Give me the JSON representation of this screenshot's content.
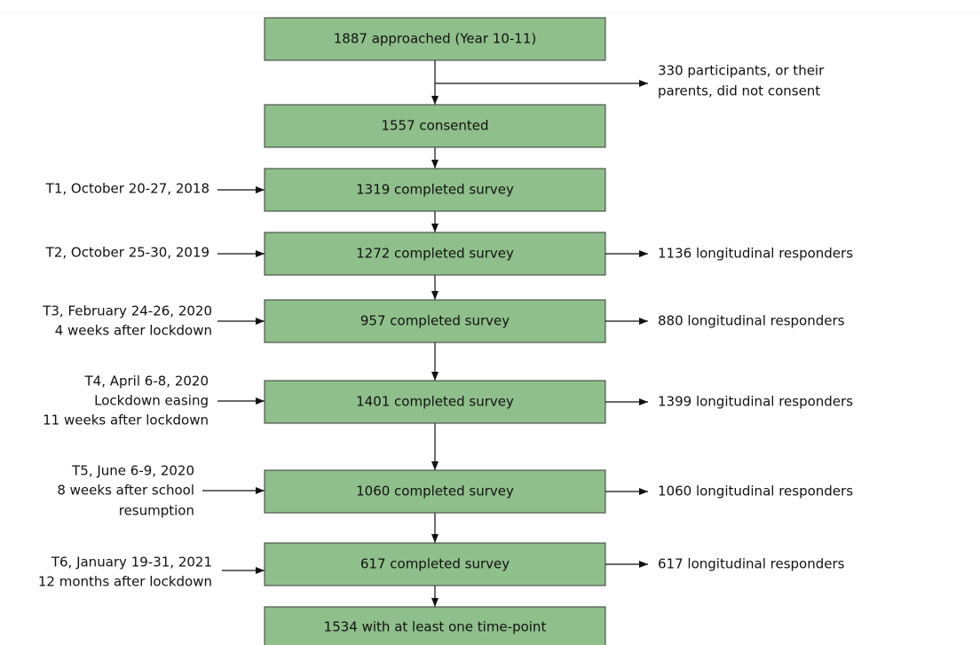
{
  "nodes": [
    {
      "label": "1887 approached (Year 10-11)"
    },
    {
      "label": "1557 consented"
    },
    {
      "label": "1319 completed survey"
    },
    {
      "label": "1272 completed survey"
    },
    {
      "label": "957 completed survey"
    },
    {
      "label": "1401 completed survey"
    },
    {
      "label": "1060 completed survey"
    },
    {
      "label": "617 completed survey"
    },
    {
      "label": "1534 with at least one time-point"
    }
  ],
  "exclusion": {
    "lines": [
      "330 participants, or their",
      "parents, did not consent"
    ]
  },
  "time_points": [
    {
      "lines": [
        "T1, October 20-27, 2018"
      ]
    },
    {
      "lines": [
        "T2, October 25-30, 2019"
      ]
    },
    {
      "lines": [
        "T3, February 24-26, 2020",
        "4 weeks after lockdown"
      ]
    },
    {
      "lines": [
        "T4, April 6-8, 2020",
        "Lockdown easing",
        "11 weeks after lockdown"
      ]
    },
    {
      "lines": [
        "T5, June 6-9, 2020",
        "8 weeks after school",
        "resumption"
      ]
    },
    {
      "lines": [
        "T6, January 19-31, 2021",
        "12 months after lockdown"
      ]
    }
  ],
  "longitudinal": [
    {
      "label": "1136 longitudinal responders"
    },
    {
      "label": "880 longitudinal responders"
    },
    {
      "label": "1399 longitudinal responders"
    },
    {
      "label": "1060 longitudinal responders"
    },
    {
      "label": "617 longitudinal responders"
    }
  ]
}
